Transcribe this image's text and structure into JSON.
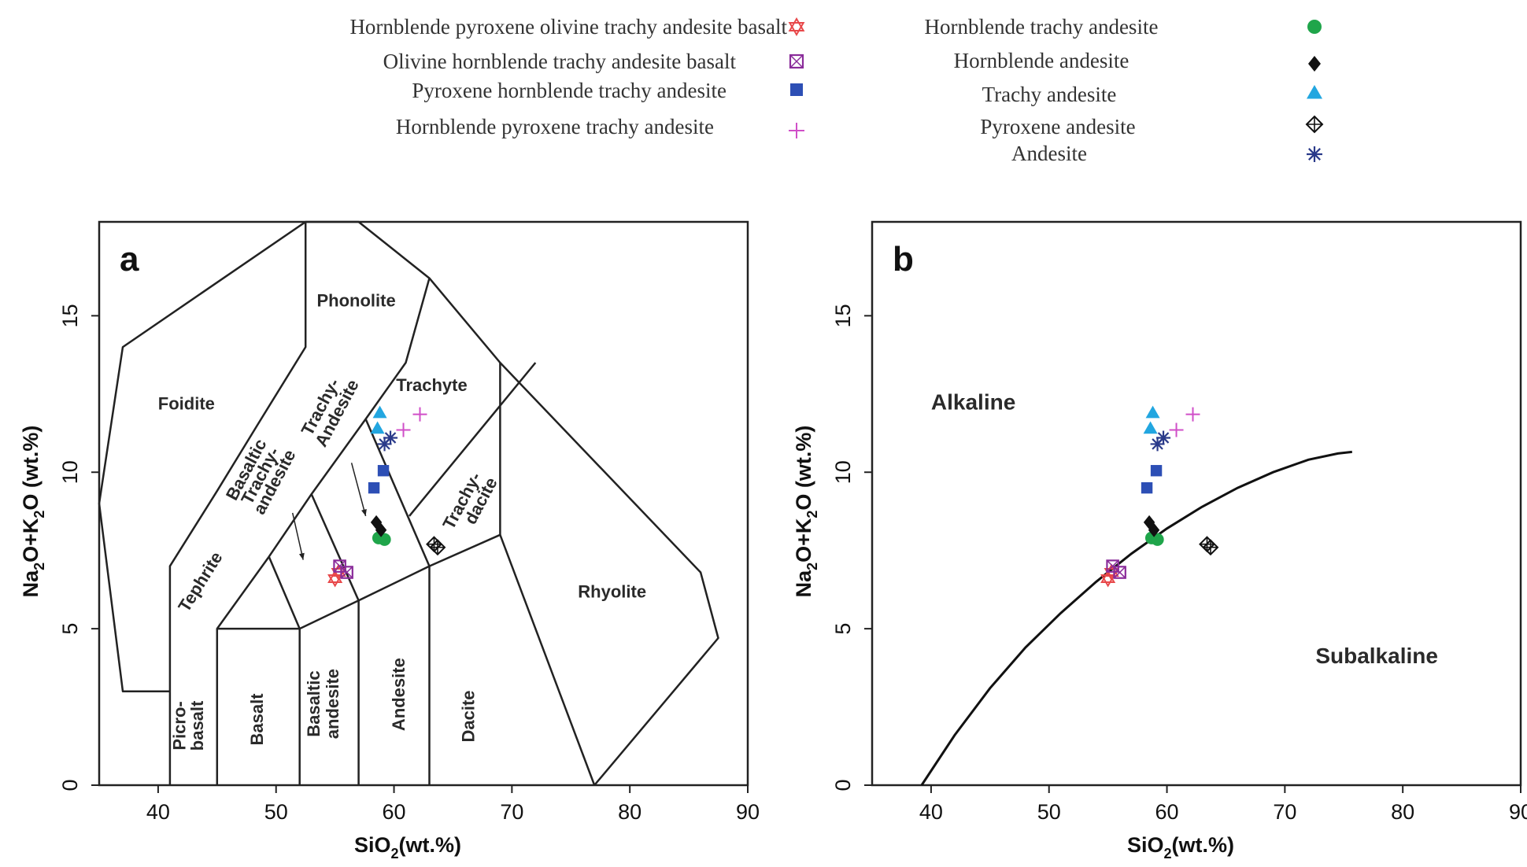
{
  "legend": [
    {
      "label": "Hornblende pyroxene  olivine trachy andesite basalt",
      "symbol": "star-of-david",
      "color": "#e8484a"
    },
    {
      "label": "Olivine hornblende trachy andesite basalt",
      "symbol": "crossed-square",
      "color": "#8a2c9a"
    },
    {
      "label": "Pyroxene hornblende trachy andesite",
      "symbol": "square",
      "color": "#2d4fb5"
    },
    {
      "label": "Hornblende pyroxene trachy andesite",
      "symbol": "plus",
      "color": "#d04fc8"
    },
    {
      "label": "Hornblende trachy andesite",
      "symbol": "circle",
      "color": "#1fa54a"
    },
    {
      "label": "Hornblende andesite",
      "symbol": "diamond",
      "color": "#111111"
    },
    {
      "label": "Trachy andesite",
      "symbol": "triangle",
      "color": "#22a6e0"
    },
    {
      "label": "Pyroxene andesite",
      "symbol": "crossed-diamond",
      "color": "#111111"
    },
    {
      "label": "Andesite",
      "symbol": "asterisk",
      "color": "#2a3a8a"
    }
  ],
  "chart_data": [
    {
      "panel": "a",
      "type": "scatter",
      "xlabel_main": "SiO",
      "xlabel_sub": "2",
      "xlabel_rest": "(wt.%)",
      "ylabel": {
        "a": "Na",
        "b": "2",
        "c": "O+K",
        "d": "2",
        "e": "O (wt.%)"
      },
      "xlim": [
        35,
        90
      ],
      "ylim": [
        0,
        18
      ],
      "xticks": [
        "40",
        "50",
        "60",
        "70",
        "80",
        "90"
      ],
      "yticks": [
        "0",
        "5",
        "10",
        "15"
      ],
      "fields": {
        "foidite": "Foidite",
        "phonolite": "Phonolite",
        "trachyte": "Trachyte",
        "trachy_andesite_1": "Trachy-",
        "trachy_andesite_2": "Andesite",
        "basaltic_ta_1": "Basaltic",
        "basaltic_ta_2": "Trachy-",
        "basaltic_ta_3": "andesite",
        "trachydacite_1": "Trachy-",
        "trachydacite_2": "dacite",
        "tephrite": "Tephrite",
        "rhyolite": "Rhyolite",
        "picrobasalt_1": "Picro-",
        "picrobasalt_2": "basalt",
        "basalt": "Basalt",
        "basaltic_andesite_1": "Basaltic",
        "basaltic_andesite_2": "andesite",
        "andesite": "Andesite",
        "dacite": "Dacite"
      }
    },
    {
      "panel": "b",
      "type": "scatter",
      "xlabel_main": "SiO",
      "xlabel_sub": "2",
      "xlabel_rest": "(wt.%)",
      "ylabel": {
        "a": "Na",
        "b": "2",
        "c": "O+K",
        "d": "2",
        "e": "O (wt.%)"
      },
      "xlim": [
        35,
        90
      ],
      "ylim": [
        0,
        18
      ],
      "xticks": [
        "40",
        "50",
        "60",
        "70",
        "80",
        "90"
      ],
      "yticks": [
        "0",
        "5",
        "10",
        "15"
      ],
      "fields": {
        "alkaline": "Alkaline",
        "subalkaline": "Subalkaline"
      },
      "divider_curve": [
        [
          39.2,
          0
        ],
        [
          42,
          1.6
        ],
        [
          45,
          3.1
        ],
        [
          48,
          4.4
        ],
        [
          51,
          5.5
        ],
        [
          54,
          6.5
        ],
        [
          57,
          7.4
        ],
        [
          60,
          8.2
        ],
        [
          63,
          8.9
        ],
        [
          66,
          9.5
        ],
        [
          69,
          10.0
        ],
        [
          72,
          10.4
        ],
        [
          74.5,
          10.6
        ],
        [
          75.7,
          10.65
        ]
      ]
    }
  ],
  "points": [
    {
      "symbol": "star-of-david",
      "x": 55.0,
      "y": 6.6
    },
    {
      "symbol": "star-of-david",
      "x": 55.3,
      "y": 6.8
    },
    {
      "symbol": "crossed-square",
      "x": 55.4,
      "y": 7.0
    },
    {
      "symbol": "crossed-square",
      "x": 56.0,
      "y": 6.8
    },
    {
      "symbol": "circle",
      "x": 58.7,
      "y": 7.9
    },
    {
      "symbol": "circle",
      "x": 59.2,
      "y": 7.85
    },
    {
      "symbol": "diamond",
      "x": 58.5,
      "y": 8.4
    },
    {
      "symbol": "diamond",
      "x": 58.9,
      "y": 8.15
    },
    {
      "symbol": "square",
      "x": 58.3,
      "y": 9.5
    },
    {
      "symbol": "square",
      "x": 59.1,
      "y": 10.05
    },
    {
      "symbol": "triangle",
      "x": 58.8,
      "y": 11.9
    },
    {
      "symbol": "triangle",
      "x": 58.6,
      "y": 11.4
    },
    {
      "symbol": "asterisk",
      "x": 59.2,
      "y": 10.9
    },
    {
      "symbol": "asterisk",
      "x": 59.7,
      "y": 11.1
    },
    {
      "symbol": "plus",
      "x": 60.8,
      "y": 11.35
    },
    {
      "symbol": "plus",
      "x": 62.2,
      "y": 11.85
    },
    {
      "symbol": "crossed-diamond",
      "x": 63.4,
      "y": 7.7
    },
    {
      "symbol": "crossed-diamond",
      "x": 63.7,
      "y": 7.6
    }
  ]
}
